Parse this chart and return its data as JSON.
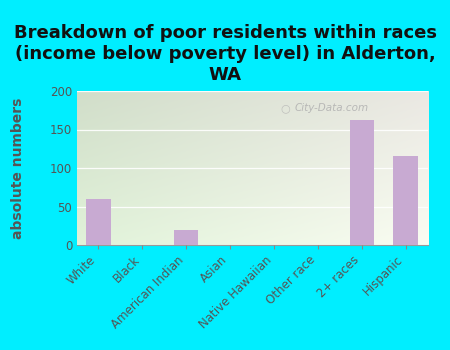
{
  "title": "Breakdown of poor residents within races\n(income below poverty level) in Alderton,\nWA",
  "categories": [
    "White",
    "Black",
    "American Indian",
    "Asian",
    "Native Hawaiian",
    "Other race",
    "2+ races",
    "Hispanic"
  ],
  "values": [
    60,
    0,
    19,
    0,
    0,
    0,
    162,
    115
  ],
  "bar_color": "#c8aad2",
  "ylabel": "absolute numbers",
  "ylim": [
    0,
    200
  ],
  "yticks": [
    0,
    50,
    100,
    150,
    200
  ],
  "background_color": "#00eeff",
  "plot_bg_color_topleft": [
    0.85,
    0.93,
    0.8
  ],
  "plot_bg_color_bottomright": [
    0.96,
    0.99,
    0.94
  ],
  "watermark": "City-Data.com",
  "title_fontsize": 13,
  "ylabel_fontsize": 10,
  "tick_fontsize": 8.5,
  "title_color": "#111111",
  "ylabel_color": "#555555",
  "tick_color": "#555555"
}
